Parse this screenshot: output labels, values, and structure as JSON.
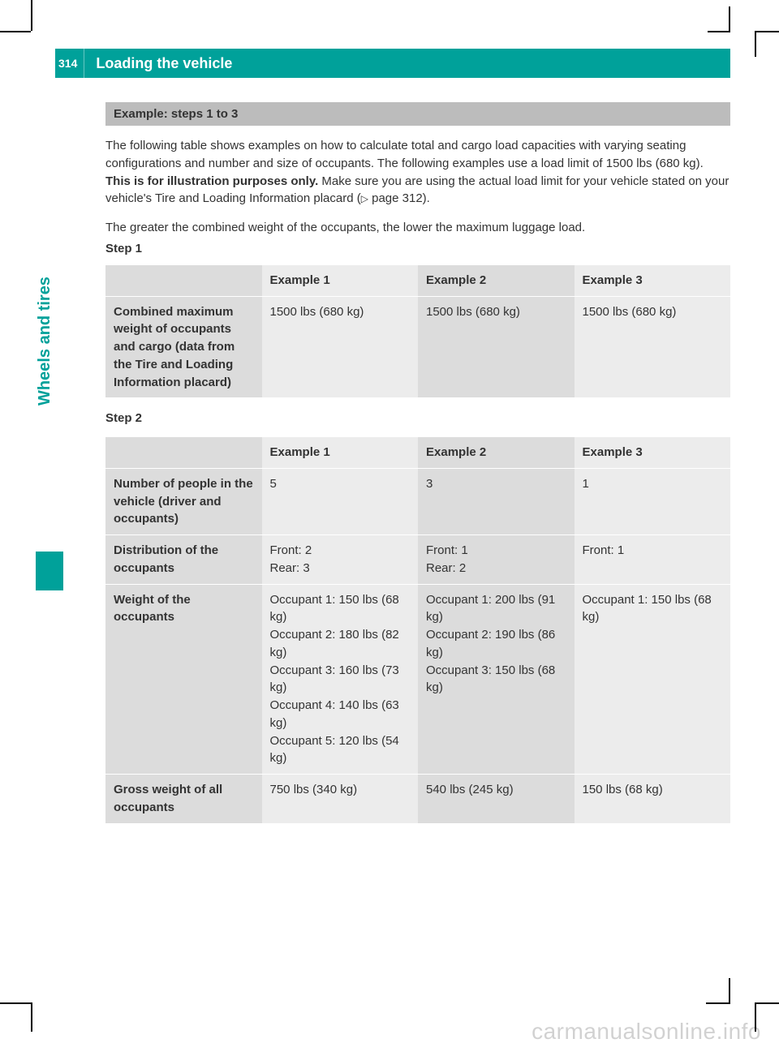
{
  "header": {
    "page_number": "314",
    "title": "Loading the vehicle"
  },
  "side": {
    "tab_label": "Wheels and tires",
    "tab_color": "#00a19a"
  },
  "section": {
    "title": "Example: steps 1 to 3"
  },
  "intro": {
    "p1_a": "The following table shows examples on how to calculate total and cargo load capacities with varying seating configurations and number and size of occupants. The following examples use a load limit of 1500 lbs (680 kg). ",
    "p1_bold": "This is for illustration purposes only.",
    "p1_b": " Make sure you are using the actual load limit for your vehicle stated on your vehicle's Tire and Loading Information placard (",
    "p1_ref": " page 312).",
    "p2": "The greater the combined weight of the occupants, the lower the maximum luggage load."
  },
  "step1": {
    "label": "Step 1",
    "headers": {
      "ex1": "Example 1",
      "ex2": "Example 2",
      "ex3": "Example 3"
    },
    "row_label": "Combined maximum weight of occupants and cargo (data from the Tire and Loading Information placard)",
    "ex1": "1500 lbs (680 kg)",
    "ex2": "1500 lbs (680 kg)",
    "ex3": "1500 lbs (680 kg)"
  },
  "step2": {
    "label": "Step 2",
    "headers": {
      "ex1": "Example 1",
      "ex2": "Example 2",
      "ex3": "Example 3"
    },
    "rows": {
      "people": {
        "label": "Number of people in the vehicle (driver and occupants)",
        "ex1": "5",
        "ex2": "3",
        "ex3": "1"
      },
      "dist": {
        "label": "Distribution of the occupants",
        "ex1_l1": "Front: 2",
        "ex1_l2": "Rear: 3",
        "ex2_l1": "Front: 1",
        "ex2_l2": "Rear: 2",
        "ex3_l1": "Front: 1"
      },
      "weight": {
        "label": "Weight of the occupants",
        "ex1_l1": "Occupant 1: 150 lbs (68 kg)",
        "ex1_l2": "Occupant 2: 180 lbs (82 kg)",
        "ex1_l3": "Occupant 3: 160 lbs (73 kg)",
        "ex1_l4": "Occupant 4: 140 lbs (63 kg)",
        "ex1_l5": "Occupant 5: 120 lbs (54 kg)",
        "ex2_l1": "Occupant 1: 200 lbs (91 kg)",
        "ex2_l2": "Occupant 2: 190 lbs (86 kg)",
        "ex2_l3": "Occupant 3: 150 lbs (68 kg)",
        "ex3_l1": "Occupant 1: 150 lbs (68 kg)"
      },
      "gross": {
        "label": "Gross weight of all occupants",
        "ex1": "750 lbs (340 kg)",
        "ex2": "540 lbs (245 kg)",
        "ex3": "150 lbs (68 kg)"
      }
    }
  },
  "watermark": "carmanualsonline.info",
  "colors": {
    "teal": "#00a19a",
    "header_gray": "#bcbcbc",
    "hd": "#dcdcdc",
    "lt": "#ececec"
  }
}
